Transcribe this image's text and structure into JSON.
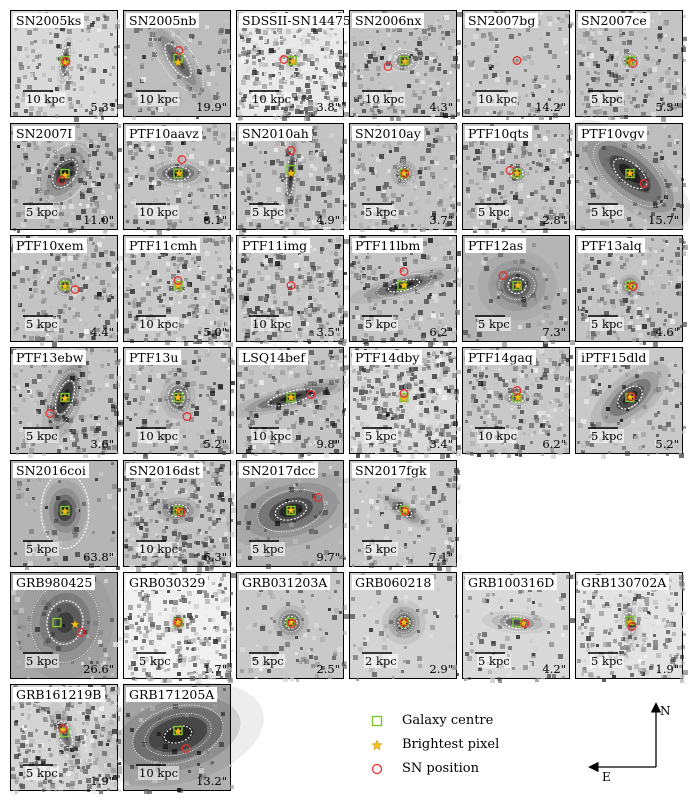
{
  "panels": [
    {
      "name": "SN2005ks",
      "size": "5.3\"",
      "scale": "10 kpc",
      "bg": "#d9d9d9",
      "galaxy": {
        "rx": 3,
        "ry": 11,
        "rot": 10,
        "dark": 0.9
      },
      "ell": [
        {
          "rx": 4,
          "ry": 14
        },
        {
          "rx": 6,
          "ry": 20
        }
      ],
      "gc": [
        0,
        0
      ],
      "bp": [
        0,
        2
      ],
      "sn": [
        1,
        1
      ],
      "noise": 0.25
    },
    {
      "name": "SN2005nb",
      "size": "19.9\"",
      "scale": "10 kpc",
      "bg": "#bdbdbd",
      "galaxy": {
        "rx": 6,
        "ry": 26,
        "rot": -35,
        "dark": 0.55
      },
      "ell": [
        {
          "rx": 8,
          "ry": 20
        },
        {
          "rx": 16,
          "ry": 38
        }
      ],
      "gc": [
        0,
        -2
      ],
      "bp": [
        0,
        2
      ],
      "sn": [
        1,
        -10
      ],
      "noise": 0.15
    },
    {
      "name": "SDSSII-SN14475",
      "size": "3.8\"",
      "scale": "10 kpc",
      "bg": "#e8e8e8",
      "galaxy": {
        "rx": 4,
        "ry": 6,
        "rot": 0,
        "dark": 0.5
      },
      "ell": [
        {
          "rx": 4,
          "ry": 7
        }
      ],
      "gc": [
        1,
        0
      ],
      "bp": [
        2,
        1
      ],
      "sn": [
        -7,
        -1
      ],
      "noise": 0.55
    },
    {
      "name": "SN2006nx",
      "size": "4.3\"",
      "scale": "10 kpc",
      "bg": "#c4c4c4",
      "galaxy": {
        "rx": 6,
        "ry": 5,
        "rot": 0,
        "dark": 0.8
      },
      "ell": [
        {
          "rx": 9,
          "ry": 7
        },
        {
          "rx": 15,
          "ry": 11
        }
      ],
      "gc": [
        0,
        0
      ],
      "bp": [
        1,
        1
      ],
      "sn": [
        -16,
        6
      ],
      "noise": 0.3
    },
    {
      "name": "SN2007bg",
      "size": "14.2\"",
      "scale": "10 kpc",
      "bg": "#c9c9c9",
      "galaxy": {
        "rx": 2,
        "ry": 2,
        "rot": 0,
        "dark": 0.25
      },
      "ell": [],
      "gc": null,
      "bp": null,
      "sn": [
        0,
        0
      ],
      "noise": 0.2
    },
    {
      "name": "SN2007ce",
      "size": "5.3\"",
      "scale": "5 kpc",
      "bg": "#c4c4c4",
      "galaxy": {
        "rx": 4,
        "ry": 4,
        "rot": 0,
        "dark": 0.85
      },
      "ell": [
        {
          "rx": 6,
          "ry": 5
        },
        {
          "rx": 10,
          "ry": 8
        }
      ],
      "gc": [
        0,
        0
      ],
      "bp": [
        0,
        1
      ],
      "sn": [
        3,
        3
      ],
      "noise": 0.35
    },
    {
      "name": "SN2007I",
      "size": "11.0\"",
      "scale": "5 kpc",
      "bg": "#bdbdbd",
      "galaxy": {
        "rx": 9,
        "ry": 16,
        "rot": 35,
        "dark": 0.95
      },
      "ell": [
        {
          "rx": 10,
          "ry": 16
        },
        {
          "rx": 22,
          "ry": 32
        }
      ],
      "gc": [
        0,
        0
      ],
      "bp": [
        0,
        2
      ],
      "sn": [
        -3,
        7
      ],
      "noise": 0.3
    },
    {
      "name": "PTF10aavz",
      "size": "8.1\"",
      "scale": "10 kpc",
      "bg": "#c4c4c4",
      "galaxy": {
        "rx": 14,
        "ry": 6,
        "rot": 0,
        "dark": 0.9
      },
      "ell": [
        {
          "rx": 12,
          "ry": 7
        },
        {
          "rx": 22,
          "ry": 12
        }
      ],
      "gc": [
        0,
        0
      ],
      "bp": [
        1,
        0
      ],
      "sn": [
        4,
        -14
      ],
      "noise": 0.3
    },
    {
      "name": "SN2010ah",
      "size": "4.9\"",
      "scale": "5 kpc",
      "bg": "#c4c4c4",
      "galaxy": {
        "rx": 3,
        "ry": 20,
        "rot": 5,
        "dark": 0.9
      },
      "ell": [
        {
          "rx": 4,
          "ry": 22
        }
      ],
      "gc": [
        0,
        -4
      ],
      "bp": [
        0,
        0
      ],
      "sn": [
        0,
        -23
      ],
      "noise": 0.3
    },
    {
      "name": "SN2010ay",
      "size": "3.7\"",
      "scale": "5 kpc",
      "bg": "#c4c4c4",
      "galaxy": {
        "rx": 6,
        "ry": 6,
        "rot": 0,
        "dark": 0.95
      },
      "ell": [
        {
          "rx": 6,
          "ry": 6
        },
        {
          "rx": 9,
          "ry": 8
        }
      ],
      "gc": [
        0,
        0
      ],
      "bp": [
        0,
        0
      ],
      "sn": [
        1,
        0
      ],
      "noise": 0.3
    },
    {
      "name": "PTF10qts",
      "size": "2.8\"",
      "scale": "5 kpc",
      "bg": "#c4c4c4",
      "galaxy": {
        "rx": 5,
        "ry": 5,
        "rot": 0,
        "dark": 0.8
      },
      "ell": [
        {
          "rx": 6,
          "ry": 5
        },
        {
          "rx": 10,
          "ry": 8
        }
      ],
      "gc": [
        0,
        0
      ],
      "bp": [
        0,
        0
      ],
      "sn": [
        -7,
        -3
      ],
      "noise": 0.35
    },
    {
      "name": "PTF10vgv",
      "size": "15.7\"",
      "scale": "5 kpc",
      "bg": "#bdbdbd",
      "galaxy": {
        "rx": 14,
        "ry": 34,
        "rot": -50,
        "dark": 0.85
      },
      "ell": [
        {
          "rx": 10,
          "ry": 20
        },
        {
          "rx": 22,
          "ry": 44
        }
      ],
      "gc": [
        0,
        0
      ],
      "bp": [
        0,
        0
      ],
      "sn": [
        14,
        10
      ],
      "noise": 0.15
    },
    {
      "name": "PTF10xem",
      "size": "4.4\"",
      "scale": "5 kpc",
      "bg": "#c4c4c4",
      "galaxy": {
        "rx": 5,
        "ry": 5,
        "rot": 0,
        "dark": 0.9
      },
      "ell": [
        {
          "rx": 5,
          "ry": 5
        },
        {
          "rx": 9,
          "ry": 9
        }
      ],
      "gc": [
        0,
        0
      ],
      "bp": [
        0,
        1
      ],
      "sn": [
        10,
        4
      ],
      "noise": 0.3
    },
    {
      "name": "PTF11cmh",
      "size": "5.0\"",
      "scale": "10 kpc",
      "bg": "#c9c9c9",
      "galaxy": {
        "rx": 3,
        "ry": 4,
        "rot": 0,
        "dark": 0.55
      },
      "ell": [
        {
          "rx": 4,
          "ry": 5
        },
        {
          "rx": 7,
          "ry": 9
        }
      ],
      "gc": [
        0,
        0
      ],
      "bp": [
        0,
        0
      ],
      "sn": [
        0,
        -5
      ],
      "noise": 0.45
    },
    {
      "name": "PTF11img",
      "size": "3.5\"",
      "scale": "10 kpc",
      "bg": "#c9c9c9",
      "galaxy": {
        "rx": 2,
        "ry": 2,
        "rot": 0,
        "dark": 0.15
      },
      "ell": [],
      "gc": null,
      "bp": null,
      "sn": [
        0,
        0
      ],
      "noise": 0.5
    },
    {
      "name": "PTF11lbm",
      "size": "6.2\"",
      "scale": "5 kpc",
      "bg": "#c4c4c4",
      "galaxy": {
        "rx": 26,
        "ry": 5,
        "rot": -15,
        "dark": 0.9
      },
      "ell": [
        {
          "rx": 16,
          "ry": 5
        },
        {
          "rx": 28,
          "ry": 10
        }
      ],
      "gc": [
        -2,
        0
      ],
      "bp": [
        0,
        0
      ],
      "sn": [
        0,
        -14
      ],
      "noise": 0.3
    },
    {
      "name": "PTF12as",
      "size": "7.3\"",
      "scale": "5 kpc",
      "bg": "#b5b5b5",
      "galaxy": {
        "rx": 18,
        "ry": 16,
        "rot": 0,
        "dark": 0.55
      },
      "ell": [
        {
          "rx": 9,
          "ry": 8
        },
        {
          "rx": 18,
          "ry": 14
        }
      ],
      "gc": [
        0,
        0
      ],
      "bp": [
        1,
        0
      ],
      "sn": [
        -14,
        -10
      ],
      "noise": 0.1
    },
    {
      "name": "PTF13alq",
      "size": "4.6\"",
      "scale": "5 kpc",
      "bg": "#c4c4c4",
      "galaxy": {
        "rx": 5,
        "ry": 5,
        "rot": 0,
        "dark": 0.95
      },
      "ell": [
        {
          "rx": 5,
          "ry": 5
        }
      ],
      "gc": [
        0,
        0
      ],
      "bp": [
        0,
        0
      ],
      "sn": [
        3,
        1
      ],
      "noise": 0.3
    },
    {
      "name": "PTF13ebw",
      "size": "3.6\"",
      "scale": "5 kpc",
      "bg": "#c4c4c4",
      "galaxy": {
        "rx": 8,
        "ry": 22,
        "rot": 20,
        "dark": 0.95
      },
      "ell": [
        {
          "rx": 8,
          "ry": 18
        },
        {
          "rx": 13,
          "ry": 28
        }
      ],
      "gc": [
        0,
        0
      ],
      "bp": [
        0,
        1
      ],
      "sn": [
        -15,
        16
      ],
      "noise": 0.3
    },
    {
      "name": "PTF13u",
      "size": "5.2\"",
      "scale": "10 kpc",
      "bg": "#c4c4c4",
      "galaxy": {
        "rx": 8,
        "ry": 10,
        "rot": 0,
        "dark": 0.75
      },
      "ell": [
        {
          "rx": 6,
          "ry": 8
        },
        {
          "rx": 10,
          "ry": 13
        }
      ],
      "gc": [
        0,
        0
      ],
      "bp": [
        0,
        0
      ],
      "sn": [
        9,
        19
      ],
      "noise": 0.3
    },
    {
      "name": "LSQ14bef",
      "size": "9.8\"",
      "scale": "10 kpc",
      "bg": "#c4c4c4",
      "galaxy": {
        "rx": 30,
        "ry": 5,
        "rot": -15,
        "dark": 0.85
      },
      "ell": [
        {
          "rx": 24,
          "ry": 6
        }
      ],
      "gc": [
        0,
        0
      ],
      "bp": [
        0,
        0
      ],
      "sn": [
        20,
        -3
      ],
      "noise": 0.3
    },
    {
      "name": "PTF14dby",
      "size": "3.4\"",
      "scale": "5 kpc",
      "bg": "#d9d9d9",
      "galaxy": {
        "rx": 3,
        "ry": 3,
        "rot": 0,
        "dark": 0.4
      },
      "ell": [
        {
          "rx": 5,
          "ry": 5
        }
      ],
      "gc": [
        0,
        0
      ],
      "bp": [
        0,
        1
      ],
      "sn": [
        0,
        -4
      ],
      "noise": 0.5
    },
    {
      "name": "PTF14gaq",
      "size": "6.2\"",
      "scale": "10 kpc",
      "bg": "#c9c9c9",
      "galaxy": {
        "rx": 8,
        "ry": 4,
        "rot": 0,
        "dark": 0.6
      },
      "ell": [
        {
          "rx": 8,
          "ry": 5
        },
        {
          "rx": 14,
          "ry": 9
        }
      ],
      "gc": [
        0,
        0
      ],
      "bp": [
        1,
        0
      ],
      "sn": [
        0,
        -7
      ],
      "noise": 0.4
    },
    {
      "name": "iPTF15dld",
      "size": "5.2\"",
      "scale": "5 kpc",
      "bg": "#c9c9c9",
      "galaxy": {
        "rx": 10,
        "ry": 22,
        "rot": 50,
        "dark": 0.85
      },
      "ell": [
        {
          "rx": 9,
          "ry": 14
        }
      ],
      "gc": [
        0,
        0
      ],
      "bp": [
        0,
        0
      ],
      "sn": [
        1,
        -1
      ],
      "noise": 0.2
    },
    {
      "name": "SN2016coi",
      "size": "63.8\"",
      "scale": "5 kpc",
      "bg": "#b5b5b5",
      "galaxy": {
        "rx": 10,
        "ry": 14,
        "rot": 0,
        "dark": 0.85
      },
      "ell": [
        {
          "rx": 24,
          "ry": 38
        }
      ],
      "gc": [
        0,
        0
      ],
      "bp": [
        0,
        1
      ],
      "sn": [
        8,
        -40
      ],
      "noise": 0.1
    },
    {
      "name": "SN2016dst",
      "size": "6.3\"",
      "scale": "10 kpc",
      "bg": "#c4c4c4",
      "galaxy": {
        "rx": 10,
        "ry": 6,
        "rot": 0,
        "dark": 0.85
      },
      "ell": [
        {
          "rx": 10,
          "ry": 6
        }
      ],
      "gc": [
        0,
        0
      ],
      "bp": [
        0,
        0
      ],
      "sn": [
        3,
        2
      ],
      "noise": 0.55
    },
    {
      "name": "SN2017dcc",
      "size": "9.7\"",
      "scale": "5 kpc",
      "bg": "#b5b5b5",
      "galaxy": {
        "rx": 30,
        "ry": 16,
        "rot": -15,
        "dark": 0.75
      },
      "ell": [
        {
          "rx": 16,
          "ry": 9
        },
        {
          "rx": 34,
          "ry": 20
        }
      ],
      "gc": [
        0,
        0
      ],
      "bp": [
        0,
        0
      ],
      "sn": [
        27,
        -13
      ],
      "noise": 0.1
    },
    {
      "name": "SN2017fgk",
      "size": "7.1\"",
      "scale": "5 kpc",
      "bg": "#c9c9c9",
      "galaxy": {
        "rx": 12,
        "ry": 4,
        "rot": 35,
        "dark": 0.9
      },
      "ell": [
        {
          "rx": 9,
          "ry": 4
        }
      ],
      "gc": [
        0,
        0
      ],
      "bp": [
        1,
        0
      ],
      "sn": [
        1,
        1
      ],
      "noise": 0.25
    },
    {
      "name": "GRB980425",
      "size": "26.6\"",
      "scale": "5 kpc",
      "bg": "#a8a8a8",
      "galaxy": {
        "rx": 22,
        "ry": 26,
        "rot": 10,
        "dark": 0.55
      },
      "ell": [
        {
          "rx": 18,
          "ry": 22
        },
        {
          "rx": 34,
          "ry": 40
        }
      ],
      "gc": [
        -8,
        0
      ],
      "bp": [
        10,
        2
      ],
      "sn": [
        16,
        10
      ],
      "noise": 0.1
    },
    {
      "name": "GRB030329",
      "size": "1.7\"",
      "scale": "5 kpc",
      "bg": "#f0f0f0",
      "galaxy": {
        "rx": 4,
        "ry": 5,
        "rot": 0,
        "dark": 0.7
      },
      "ell": [],
      "gc": [
        0,
        0
      ],
      "bp": [
        0,
        0
      ],
      "sn": [
        0,
        0
      ],
      "noise": 0.45
    },
    {
      "name": "GRB031203A",
      "size": "2.5\"",
      "scale": "5 kpc",
      "bg": "#c9c9c9",
      "galaxy": {
        "rx": 8,
        "ry": 8,
        "rot": 0,
        "dark": 0.9
      },
      "ell": [
        {
          "rx": 6,
          "ry": 6
        },
        {
          "rx": 10,
          "ry": 9
        }
      ],
      "gc": [
        0,
        0
      ],
      "bp": [
        0,
        0
      ],
      "sn": [
        1,
        1
      ],
      "noise": 0.15
    },
    {
      "name": "GRB060218",
      "size": "2.9\"",
      "scale": "2 kpc",
      "bg": "#d4d4d4",
      "galaxy": {
        "rx": 10,
        "ry": 10,
        "rot": 0,
        "dark": 0.75
      },
      "ell": [
        {
          "rx": 6,
          "ry": 6
        },
        {
          "rx": 10,
          "ry": 10
        }
      ],
      "gc": [
        0,
        0
      ],
      "bp": [
        0,
        0
      ],
      "sn": [
        0,
        0
      ],
      "noise": 0.1
    },
    {
      "name": "GRB100316D",
      "size": "4.2\"",
      "scale": "5 kpc",
      "bg": "#d9d9d9",
      "galaxy": {
        "rx": 16,
        "ry": 5,
        "rot": 5,
        "dark": 0.6
      },
      "ell": [
        {
          "rx": 12,
          "ry": 6
        },
        {
          "rx": 18,
          "ry": 9
        }
      ],
      "gc": [
        0,
        0
      ],
      "bp": [
        6,
        1
      ],
      "sn": [
        8,
        1
      ],
      "noise": 0.15
    },
    {
      "name": "GRB130702A",
      "size": "1.9\"",
      "scale": "5 kpc",
      "bg": "#e3e3e3",
      "galaxy": {
        "rx": 5,
        "ry": 12,
        "rot": -10,
        "dark": 0.5
      },
      "ell": [
        {
          "rx": 6,
          "ry": 10
        }
      ],
      "gc": [
        0,
        -2
      ],
      "bp": [
        0,
        0
      ],
      "sn": [
        2,
        4
      ],
      "noise": 0.35
    },
    {
      "name": "GRB161219B",
      "size": "1.9\"",
      "scale": "5 kpc",
      "bg": "#d4d4d4",
      "galaxy": {
        "rx": 5,
        "ry": 16,
        "rot": -20,
        "dark": 0.55
      },
      "ell": [
        {
          "rx": 6,
          "ry": 14
        }
      ],
      "gc": [
        0,
        -2
      ],
      "bp": [
        -2,
        -4
      ],
      "sn": [
        -2,
        -6
      ],
      "noise": 0.55
    },
    {
      "name": "GRB171205A",
      "size": "13.2\"",
      "scale": "10 kpc",
      "bg": "#b0b0b0",
      "galaxy": {
        "rx": 40,
        "ry": 22,
        "rot": -15,
        "dark": 0.8
      },
      "ell": [
        {
          "rx": 14,
          "ry": 8
        },
        {
          "rx": 34,
          "ry": 20
        },
        {
          "rx": 46,
          "ry": 28
        }
      ],
      "gc": [
        0,
        -4
      ],
      "bp": [
        0,
        -3
      ],
      "sn": [
        8,
        14
      ],
      "noise": 0.1
    }
  ],
  "legend": [
    {
      "label": "Galaxy centre",
      "marker": "square",
      "color": "#7ec832"
    },
    {
      "label": "Brightest pixel",
      "marker": "star",
      "color": "#f0c020"
    },
    {
      "label": "SN position",
      "marker": "circle",
      "color": "#e83030"
    }
  ],
  "compass": {
    "north": "N",
    "east": "E"
  }
}
